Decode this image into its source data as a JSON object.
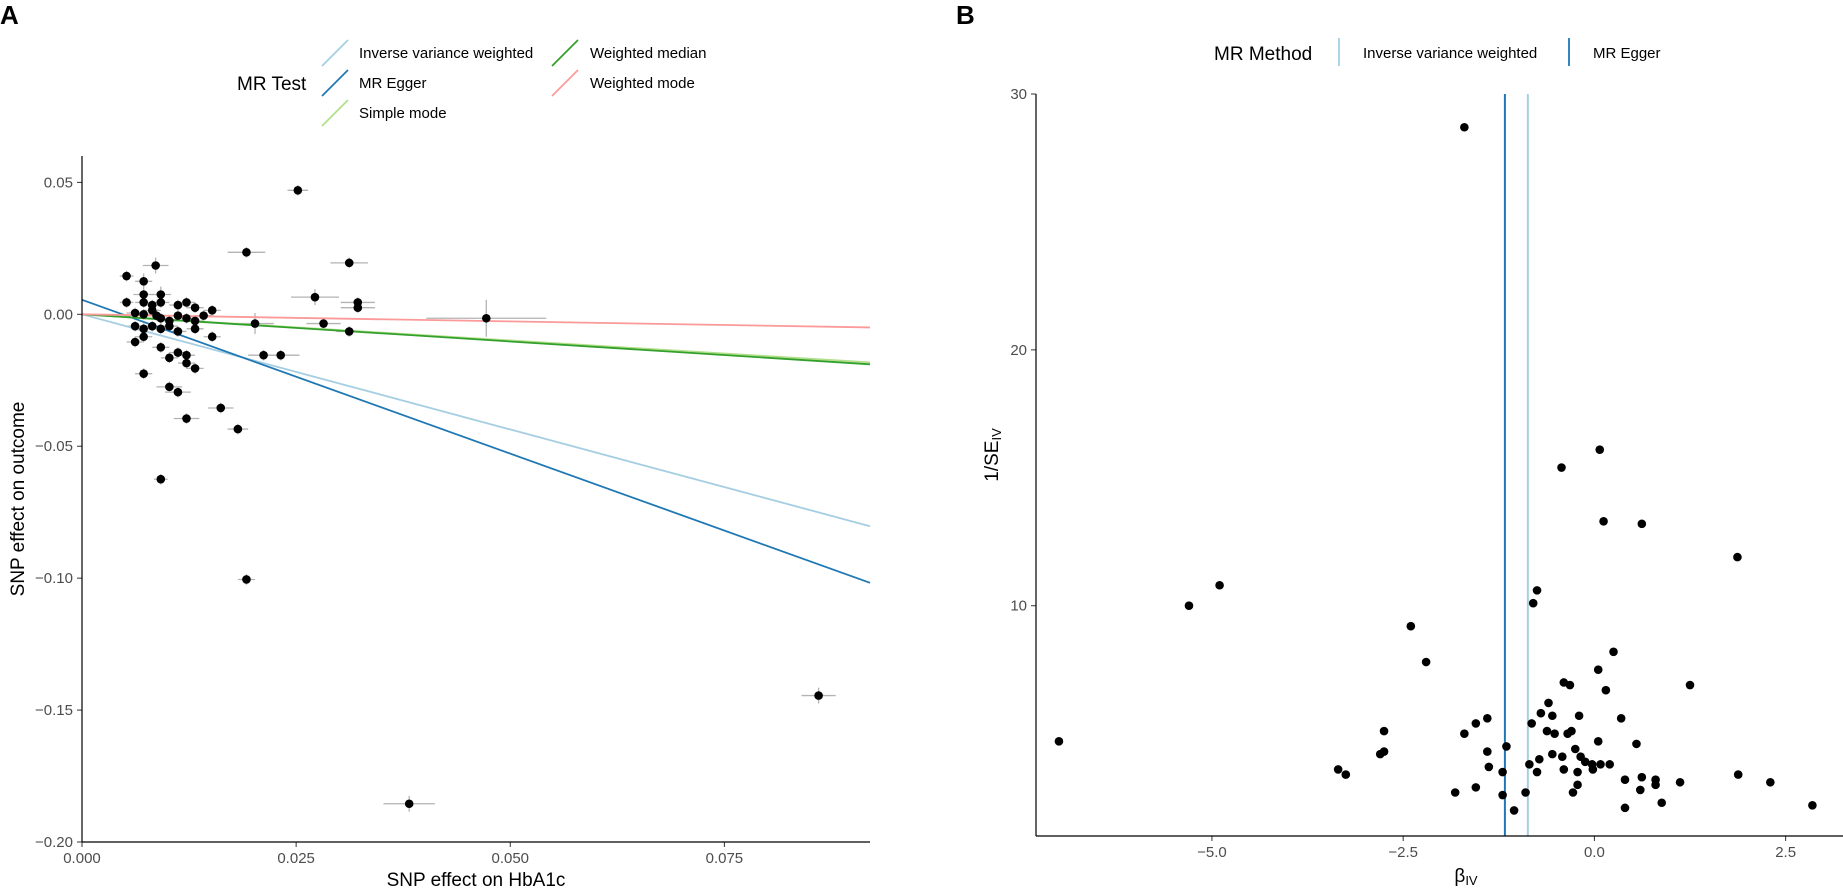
{
  "chart_data": [
    {
      "panel": "A",
      "type": "scatter",
      "xlabel": "SNP effect on HbA1c",
      "ylabel": "SNP effect on outcome",
      "xlim": [
        0,
        0.092
      ],
      "ylim": [
        -0.2,
        0.06
      ],
      "xticks": [
        0,
        0.025,
        0.05,
        0.075
      ],
      "xtick_labels": [
        "0.000",
        "0.025",
        "0.050",
        "0.075"
      ],
      "yticks": [
        0.05,
        0.0,
        -0.05,
        -0.1,
        -0.15,
        -0.2
      ],
      "ytick_labels": [
        "0.05",
        "0.00",
        "−0.05",
        "−0.10",
        "−0.15",
        "−0.20"
      ],
      "legend": {
        "title": "MR Test",
        "position": "top",
        "entries": [
          {
            "label": "Inverse variance weighted",
            "color": "#a6cee3"
          },
          {
            "label": "MR Egger",
            "color": "#1f78b4"
          },
          {
            "label": "Simple mode",
            "color": "#b2df8a"
          },
          {
            "label": "Weighted median",
            "color": "#33a02c"
          },
          {
            "label": "Weighted mode",
            "color": "#fb9a99"
          }
        ]
      },
      "lines": [
        {
          "name": "Inverse variance weighted",
          "color": "#a6cee3",
          "intercept": 0.0,
          "slope": -0.873
        },
        {
          "name": "MR Egger",
          "color": "#1f78b4",
          "intercept": 0.0055,
          "slope": -1.166
        },
        {
          "name": "Simple mode",
          "color": "#b2df8a",
          "intercept": 0.0,
          "slope": -0.198
        },
        {
          "name": "Weighted median",
          "color": "#33a02c",
          "intercept": 0.0,
          "slope": -0.206
        },
        {
          "name": "Weighted mode",
          "color": "#fb9a99",
          "intercept": 0.0,
          "slope": -0.054
        }
      ],
      "points": [
        {
          "x": 0.0052,
          "y": 0.0145,
          "xe": 0.0008,
          "ye": 0.002
        },
        {
          "x": 0.0086,
          "y": 0.0185,
          "xe": 0.0015,
          "ye": 0.003
        },
        {
          "x": 0.0072,
          "y": 0.0125,
          "xe": 0.001,
          "ye": 0.003
        },
        {
          "x": 0.0052,
          "y": 0.0045,
          "xe": 0.0008,
          "ye": 0.002
        },
        {
          "x": 0.0072,
          "y": 0.0075,
          "xe": 0.0012,
          "ye": 0.002
        },
        {
          "x": 0.0092,
          "y": 0.0075,
          "xe": 0.0012,
          "ye": 0.003
        },
        {
          "x": 0.0072,
          "y": 0.0045,
          "xe": 0.001,
          "ye": 0.002
        },
        {
          "x": 0.0082,
          "y": 0.0035,
          "xe": 0.001,
          "ye": 0.002
        },
        {
          "x": 0.0092,
          "y": 0.0045,
          "xe": 0.001,
          "ye": 0.002
        },
        {
          "x": 0.0112,
          "y": 0.0035,
          "xe": 0.001,
          "ye": 0.002
        },
        {
          "x": 0.0122,
          "y": 0.0045,
          "xe": 0.001,
          "ye": 0.002
        },
        {
          "x": 0.0132,
          "y": 0.0025,
          "xe": 0.001,
          "ye": 0.002
        },
        {
          "x": 0.0152,
          "y": 0.0015,
          "xe": 0.001,
          "ye": 0.002
        },
        {
          "x": 0.0062,
          "y": 0.0005,
          "xe": 0.001,
          "ye": 0.002
        },
        {
          "x": 0.0072,
          "y": 0.0,
          "xe": 0.001,
          "ye": 0.002
        },
        {
          "x": 0.0082,
          "y": 0.0015,
          "xe": 0.001,
          "ye": 0.002
        },
        {
          "x": 0.0087,
          "y": -0.0005,
          "xe": 0.001,
          "ye": 0.002
        },
        {
          "x": 0.0092,
          "y": -0.0015,
          "xe": 0.001,
          "ye": 0.002
        },
        {
          "x": 0.0102,
          "y": -0.0025,
          "xe": 0.001,
          "ye": 0.002
        },
        {
          "x": 0.0112,
          "y": -0.0005,
          "xe": 0.001,
          "ye": 0.002
        },
        {
          "x": 0.0122,
          "y": -0.0015,
          "xe": 0.001,
          "ye": 0.002
        },
        {
          "x": 0.0132,
          "y": -0.0025,
          "xe": 0.001,
          "ye": 0.002
        },
        {
          "x": 0.0142,
          "y": -0.0005,
          "xe": 0.001,
          "ye": 0.002
        },
        {
          "x": 0.0062,
          "y": -0.0045,
          "xe": 0.001,
          "ye": 0.002
        },
        {
          "x": 0.0072,
          "y": -0.0055,
          "xe": 0.001,
          "ye": 0.002
        },
        {
          "x": 0.0082,
          "y": -0.0045,
          "xe": 0.001,
          "ye": 0.002
        },
        {
          "x": 0.0092,
          "y": -0.0055,
          "xe": 0.001,
          "ye": 0.002
        },
        {
          "x": 0.0102,
          "y": -0.0045,
          "xe": 0.001,
          "ye": 0.002
        },
        {
          "x": 0.0112,
          "y": -0.0065,
          "xe": 0.001,
          "ye": 0.002
        },
        {
          "x": 0.0132,
          "y": -0.0055,
          "xe": 0.001,
          "ye": 0.002
        },
        {
          "x": 0.0152,
          "y": -0.0085,
          "xe": 0.001,
          "ye": 0.002
        },
        {
          "x": 0.0062,
          "y": -0.0105,
          "xe": 0.001,
          "ye": 0.002
        },
        {
          "x": 0.0072,
          "y": -0.0085,
          "xe": 0.001,
          "ye": 0.002
        },
        {
          "x": 0.0092,
          "y": -0.0125,
          "xe": 0.001,
          "ye": 0.002
        },
        {
          "x": 0.0112,
          "y": -0.0145,
          "xe": 0.001,
          "ye": 0.002
        },
        {
          "x": 0.0102,
          "y": -0.0165,
          "xe": 0.001,
          "ye": 0.002
        },
        {
          "x": 0.0122,
          "y": -0.0155,
          "xe": 0.001,
          "ye": 0.002
        },
        {
          "x": 0.0122,
          "y": -0.0185,
          "xe": 0.001,
          "ye": 0.002
        },
        {
          "x": 0.0132,
          "y": -0.0205,
          "xe": 0.001,
          "ye": 0.002
        },
        {
          "x": 0.0072,
          "y": -0.0225,
          "xe": 0.001,
          "ye": 0.002
        },
        {
          "x": 0.0102,
          "y": -0.0275,
          "xe": 0.0015,
          "ye": 0.002
        },
        {
          "x": 0.0112,
          "y": -0.0295,
          "xe": 0.0015,
          "ye": 0.002
        },
        {
          "x": 0.0122,
          "y": -0.0395,
          "xe": 0.0015,
          "ye": 0.002
        },
        {
          "x": 0.0162,
          "y": -0.0355,
          "xe": 0.0015,
          "ye": 0.002
        },
        {
          "x": 0.0182,
          "y": -0.0435,
          "xe": 0.0012,
          "ye": 0.002
        },
        {
          "x": 0.0092,
          "y": -0.0625,
          "xe": 0.0008,
          "ye": 0.002
        },
        {
          "x": 0.0252,
          "y": 0.047,
          "xe": 0.0012,
          "ye": 0.002
        },
        {
          "x": 0.0192,
          "y": 0.0235,
          "xe": 0.0022,
          "ye": 0.002
        },
        {
          "x": 0.0312,
          "y": 0.0195,
          "xe": 0.0022,
          "ye": 0.002
        },
        {
          "x": 0.0272,
          "y": 0.0065,
          "xe": 0.0028,
          "ye": 0.003
        },
        {
          "x": 0.0322,
          "y": 0.0045,
          "xe": 0.002,
          "ye": 0.002
        },
        {
          "x": 0.0322,
          "y": 0.0025,
          "xe": 0.002,
          "ye": 0.002
        },
        {
          "x": 0.0282,
          "y": -0.0035,
          "xe": 0.002,
          "ye": 0.002
        },
        {
          "x": 0.0312,
          "y": -0.0065,
          "xe": 0.0015,
          "ye": 0.002
        },
        {
          "x": 0.0202,
          "y": -0.0035,
          "xe": 0.0022,
          "ye": 0.004
        },
        {
          "x": 0.0212,
          "y": -0.0155,
          "xe": 0.0018,
          "ye": 0.002
        },
        {
          "x": 0.0232,
          "y": -0.0155,
          "xe": 0.0022,
          "ye": 0.002
        },
        {
          "x": 0.0472,
          "y": -0.0015,
          "xe": 0.007,
          "ye": 0.007
        },
        {
          "x": 0.0192,
          "y": -0.1005,
          "xe": 0.001,
          "ye": 0.002
        },
        {
          "x": 0.086,
          "y": -0.1445,
          "xe": 0.002,
          "ye": 0.003
        },
        {
          "x": 0.0382,
          "y": -0.1855,
          "xe": 0.003,
          "ye": 0.003
        }
      ]
    },
    {
      "panel": "B",
      "type": "scatter",
      "xlabel": "β",
      "xlabel_sub": "IV",
      "ylabel": "1/SE",
      "ylabel_sub": "IV",
      "xlim": [
        -7.3,
        3.25
      ],
      "ylim": [
        1,
        30
      ],
      "xticks": [
        -5,
        -2.5,
        0,
        2.5
      ],
      "xtick_labels": [
        "−5.0",
        "−2.5",
        "0.0",
        "2.5"
      ],
      "yticks": [
        10,
        20,
        30
      ],
      "ytick_labels": [
        "10",
        "20",
        "30"
      ],
      "legend": {
        "title": "MR Method",
        "position": "top",
        "entries": [
          {
            "label": "Inverse variance weighted",
            "color": "#a6cee3"
          },
          {
            "label": "MR Egger",
            "color": "#1f78b4"
          }
        ]
      },
      "vlines": [
        {
          "name": "MR Egger",
          "x": -1.17,
          "color": "#1f78b4"
        },
        {
          "name": "Inverse variance weighted",
          "x": -0.87,
          "color": "#a6cee3"
        }
      ],
      "points": [
        {
          "x": -1.7,
          "y": 28.7
        },
        {
          "x": 0.07,
          "y": 16.1
        },
        {
          "x": -0.43,
          "y": 15.4
        },
        {
          "x": 0.12,
          "y": 13.3
        },
        {
          "x": 0.62,
          "y": 13.2
        },
        {
          "x": 1.87,
          "y": 11.9
        },
        {
          "x": -4.9,
          "y": 10.8
        },
        {
          "x": -5.3,
          "y": 10.0
        },
        {
          "x": -0.75,
          "y": 10.6
        },
        {
          "x": -0.8,
          "y": 10.1
        },
        {
          "x": -2.4,
          "y": 9.2
        },
        {
          "x": -2.2,
          "y": 7.8
        },
        {
          "x": 0.25,
          "y": 8.2
        },
        {
          "x": 0.05,
          "y": 7.5
        },
        {
          "x": -0.4,
          "y": 7.0
        },
        {
          "x": -0.32,
          "y": 6.9
        },
        {
          "x": 0.15,
          "y": 6.7
        },
        {
          "x": 1.25,
          "y": 6.9
        },
        {
          "x": -0.6,
          "y": 6.2
        },
        {
          "x": -0.7,
          "y": 5.8
        },
        {
          "x": -0.55,
          "y": 5.7
        },
        {
          "x": -0.2,
          "y": 5.7
        },
        {
          "x": 0.35,
          "y": 5.6
        },
        {
          "x": -1.4,
          "y": 5.6
        },
        {
          "x": -1.55,
          "y": 5.4
        },
        {
          "x": -0.82,
          "y": 5.4
        },
        {
          "x": -0.62,
          "y": 5.1
        },
        {
          "x": -0.52,
          "y": 5.0
        },
        {
          "x": -0.35,
          "y": 5.0
        },
        {
          "x": -0.3,
          "y": 5.1
        },
        {
          "x": -1.7,
          "y": 5.0
        },
        {
          "x": -2.75,
          "y": 5.1
        },
        {
          "x": 0.05,
          "y": 4.7
        },
        {
          "x": 0.55,
          "y": 4.6
        },
        {
          "x": -1.15,
          "y": 4.5
        },
        {
          "x": -1.4,
          "y": 4.3
        },
        {
          "x": -2.75,
          "y": 4.3
        },
        {
          "x": -2.8,
          "y": 4.2
        },
        {
          "x": -0.25,
          "y": 4.4
        },
        {
          "x": -0.55,
          "y": 4.2
        },
        {
          "x": -0.42,
          "y": 4.1
        },
        {
          "x": -0.18,
          "y": 4.1
        },
        {
          "x": -0.72,
          "y": 4.0
        },
        {
          "x": -0.12,
          "y": 3.9
        },
        {
          "x": -0.03,
          "y": 3.8
        },
        {
          "x": 0.08,
          "y": 3.8
        },
        {
          "x": 0.2,
          "y": 3.8
        },
        {
          "x": -0.85,
          "y": 3.8
        },
        {
          "x": -1.38,
          "y": 3.7
        },
        {
          "x": -0.4,
          "y": 3.6
        },
        {
          "x": -0.22,
          "y": 3.5
        },
        {
          "x": -0.02,
          "y": 3.6
        },
        {
          "x": -0.75,
          "y": 3.5
        },
        {
          "x": -1.2,
          "y": 3.5
        },
        {
          "x": -3.35,
          "y": 3.6
        },
        {
          "x": -3.25,
          "y": 3.4
        },
        {
          "x": 0.4,
          "y": 3.2
        },
        {
          "x": 0.62,
          "y": 3.3
        },
        {
          "x": 0.8,
          "y": 3.2
        },
        {
          "x": 0.8,
          "y": 3.0
        },
        {
          "x": 1.12,
          "y": 3.1
        },
        {
          "x": 1.88,
          "y": 3.4
        },
        {
          "x": 2.3,
          "y": 3.1
        },
        {
          "x": -0.22,
          "y": 3.0
        },
        {
          "x": -1.55,
          "y": 2.9
        },
        {
          "x": -0.28,
          "y": 2.7
        },
        {
          "x": -1.82,
          "y": 2.7
        },
        {
          "x": -1.2,
          "y": 2.6
        },
        {
          "x": -0.9,
          "y": 2.7
        },
        {
          "x": 0.6,
          "y": 2.8
        },
        {
          "x": -1.05,
          "y": 2.0
        },
        {
          "x": 0.4,
          "y": 2.1
        },
        {
          "x": 0.88,
          "y": 2.3
        },
        {
          "x": 2.85,
          "y": 2.2
        },
        {
          "x": -7.0,
          "y": 4.7
        }
      ]
    }
  ]
}
